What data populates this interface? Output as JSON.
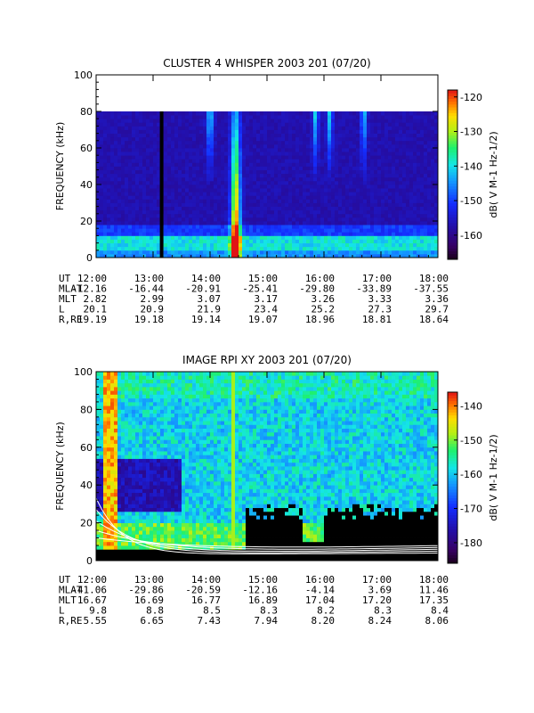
{
  "chart_data": [
    {
      "type": "heatmap",
      "title": "CLUSTER 4 WHISPER 2003 201 (07/20)",
      "ylabel": "FREQUENCY (kHz)",
      "ylim": [
        0,
        100
      ],
      "yticks": [
        "0",
        "20",
        "40",
        "60",
        "80",
        "100"
      ],
      "xticks": [
        "12:00",
        "13:00",
        "14:00",
        "15:00",
        "16:00",
        "17:00",
        "18:00"
      ],
      "data_frequency_max": 80,
      "colorbar": {
        "label": "dB( V M-1 Hz-1/2)",
        "range": [
          -167,
          -118
        ],
        "ticks": [
          -120,
          -130,
          -140,
          -150,
          -160
        ]
      },
      "ephemeris": [
        {
          "label": "UT",
          "values": [
            "12:00",
            "13:00",
            "14:00",
            "15:00",
            "16:00",
            "17:00",
            "18:00"
          ]
        },
        {
          "label": "MLAT",
          "values": [
            "-12.16",
            "-16.44",
            "-20.91",
            "-25.41",
            "-29.80",
            "-33.89",
            "-37.55"
          ]
        },
        {
          "label": "MLT",
          "values": [
            "2.82",
            "2.99",
            "3.07",
            "3.17",
            "3.26",
            "3.33",
            "3.36"
          ]
        },
        {
          "label": "L",
          "values": [
            "20.1",
            "20.9",
            "21.9",
            "23.4",
            "25.2",
            "27.3",
            "29.7"
          ]
        },
        {
          "label": "R,RE",
          "values": [
            "19.19",
            "19.18",
            "19.14",
            "19.07",
            "18.96",
            "18.81",
            "18.64"
          ]
        }
      ],
      "data_gap_hour": 13.15
    },
    {
      "type": "heatmap",
      "title": "IMAGE RPI XY 2003 201 (07/20)",
      "ylabel": "FREQUENCY (kHz)",
      "ylim": [
        0,
        100
      ],
      "yticks": [
        "0",
        "20",
        "40",
        "60",
        "80",
        "100"
      ],
      "xticks": [
        "12:00",
        "13:00",
        "14:00",
        "15:00",
        "16:00",
        "17:00",
        "18:00"
      ],
      "colorbar": {
        "label": "dB( V M-1 Hz-1/2)",
        "range": [
          -186,
          -136
        ],
        "ticks": [
          -140,
          -150,
          -160,
          -170,
          -180
        ]
      },
      "ephemeris": [
        {
          "label": "UT",
          "values": [
            "12:00",
            "13:00",
            "14:00",
            "15:00",
            "16:00",
            "17:00",
            "18:00"
          ]
        },
        {
          "label": "MLAT",
          "values": [
            "-41.06",
            "-29.86",
            "-20.59",
            "-12.16",
            "-4.14",
            "3.69",
            "11.46"
          ]
        },
        {
          "label": "MLT",
          "values": [
            "16.67",
            "16.69",
            "16.77",
            "16.89",
            "17.04",
            "17.20",
            "17.35"
          ]
        },
        {
          "label": "L",
          "values": [
            "9.8",
            "8.8",
            "8.5",
            "8.3",
            "8.2",
            "8.3",
            "8.4"
          ]
        },
        {
          "label": "R,RE",
          "values": [
            "5.55",
            "6.65",
            "7.43",
            "7.94",
            "8.20",
            "8.24",
            "8.06"
          ]
        }
      ]
    }
  ]
}
